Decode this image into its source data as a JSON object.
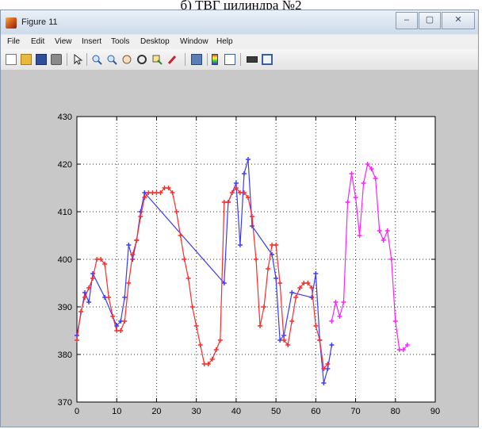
{
  "caption": "б) ТВГ цилиндра №2",
  "window": {
    "title": "Figure 11",
    "controls": {
      "minimize": "–",
      "maximize": "▢",
      "close": "✕"
    }
  },
  "menu": [
    "File",
    "Edit",
    "View",
    "Insert",
    "Tools",
    "Desktop",
    "Window",
    "Help"
  ],
  "toolbar": [
    "new-figure-icon",
    "open-file-icon",
    "save-icon",
    "print-icon",
    "pointer-icon",
    "zoom-in-icon",
    "zoom-out-icon",
    "pan-icon",
    "rotate-3d-icon",
    "data-cursor-icon",
    "brush-icon",
    "link-plot-icon",
    "colorbar-icon",
    "legend-icon",
    "hide-plot-tools-icon",
    "show-plot-tools-icon"
  ],
  "colors": {
    "red": "#ff2a2a",
    "blue": "#3a3aff",
    "magenta": "#ff20ff"
  },
  "chart_data": {
    "type": "line",
    "title": "",
    "xlabel": "",
    "ylabel": "",
    "xlim": [
      0,
      90
    ],
    "ylim": [
      370,
      430
    ],
    "xticks": [
      0,
      10,
      20,
      30,
      40,
      50,
      60,
      70,
      80,
      90
    ],
    "yticks": [
      370,
      380,
      390,
      400,
      410,
      420,
      430
    ],
    "grid": true,
    "series": [
      {
        "color": "#3a3aff",
        "points": [
          [
            0,
            384
          ],
          [
            2,
            393
          ],
          [
            3,
            391
          ],
          [
            4,
            397
          ],
          [
            7,
            392
          ],
          [
            10,
            386
          ],
          [
            11,
            387
          ],
          [
            12,
            392
          ],
          [
            13,
            403
          ],
          [
            14,
            400
          ],
          [
            15,
            404
          ],
          [
            16,
            410
          ],
          [
            17,
            414
          ],
          [
            37,
            395
          ],
          [
            38,
            412
          ],
          [
            40,
            416
          ],
          [
            41,
            403
          ],
          [
            42,
            418
          ],
          [
            43,
            421
          ],
          [
            44,
            407
          ],
          [
            49,
            401
          ],
          [
            50,
            396
          ],
          [
            51,
            383
          ],
          [
            52,
            384
          ],
          [
            54,
            393
          ],
          [
            59,
            392
          ],
          [
            60,
            397
          ],
          [
            61,
            383
          ],
          [
            62,
            374
          ],
          [
            63,
            377
          ],
          [
            64,
            382
          ]
        ]
      },
      {
        "color": "#ff2a2a",
        "points": [
          [
            0,
            383
          ],
          [
            1,
            389
          ],
          [
            2,
            392
          ],
          [
            3,
            394
          ],
          [
            4,
            396
          ],
          [
            5,
            400
          ],
          [
            6,
            400
          ],
          [
            7,
            399
          ],
          [
            8,
            392
          ],
          [
            9,
            388
          ],
          [
            10,
            385
          ],
          [
            11,
            385
          ],
          [
            12,
            387
          ],
          [
            13,
            395
          ],
          [
            14,
            401
          ],
          [
            15,
            404
          ],
          [
            16,
            409
          ],
          [
            17,
            413
          ],
          [
            18,
            414
          ],
          [
            19,
            414
          ],
          [
            20,
            414
          ],
          [
            21,
            414
          ],
          [
            22,
            415
          ],
          [
            23,
            415
          ],
          [
            24,
            414
          ],
          [
            25,
            410
          ],
          [
            26,
            405
          ],
          [
            27,
            400
          ],
          [
            28,
            396
          ],
          [
            29,
            390
          ],
          [
            30,
            386
          ],
          [
            31,
            382
          ],
          [
            32,
            378
          ],
          [
            33,
            378
          ],
          [
            34,
            379
          ],
          [
            35,
            381
          ],
          [
            36,
            383
          ],
          [
            37,
            412
          ],
          [
            38,
            412
          ],
          [
            39,
            414
          ],
          [
            40,
            415
          ],
          [
            41,
            414
          ],
          [
            42,
            414
          ],
          [
            43,
            413
          ],
          [
            44,
            409
          ],
          [
            45,
            400
          ],
          [
            46,
            386
          ],
          [
            47,
            390
          ],
          [
            48,
            398
          ],
          [
            49,
            403
          ],
          [
            50,
            403
          ],
          [
            51,
            395
          ],
          [
            52,
            383
          ],
          [
            53,
            382
          ],
          [
            54,
            387
          ],
          [
            55,
            392
          ],
          [
            56,
            394
          ],
          [
            57,
            395
          ],
          [
            58,
            395
          ],
          [
            59,
            394
          ],
          [
            60,
            386
          ],
          [
            61,
            383
          ],
          [
            62,
            377
          ],
          [
            63,
            378
          ]
        ]
      },
      {
        "color": "#ff20ff",
        "points": [
          [
            64,
            387
          ],
          [
            65,
            391
          ],
          [
            66,
            388
          ],
          [
            67,
            391
          ],
          [
            68,
            412
          ],
          [
            69,
            418
          ],
          [
            70,
            413
          ],
          [
            71,
            405
          ],
          [
            72,
            416
          ],
          [
            73,
            420
          ],
          [
            74,
            419
          ],
          [
            75,
            417
          ],
          [
            76,
            406
          ],
          [
            77,
            404
          ],
          [
            78,
            406
          ],
          [
            79,
            400
          ],
          [
            80,
            387
          ],
          [
            81,
            381
          ],
          [
            82,
            381
          ],
          [
            83,
            382
          ]
        ]
      }
    ]
  }
}
